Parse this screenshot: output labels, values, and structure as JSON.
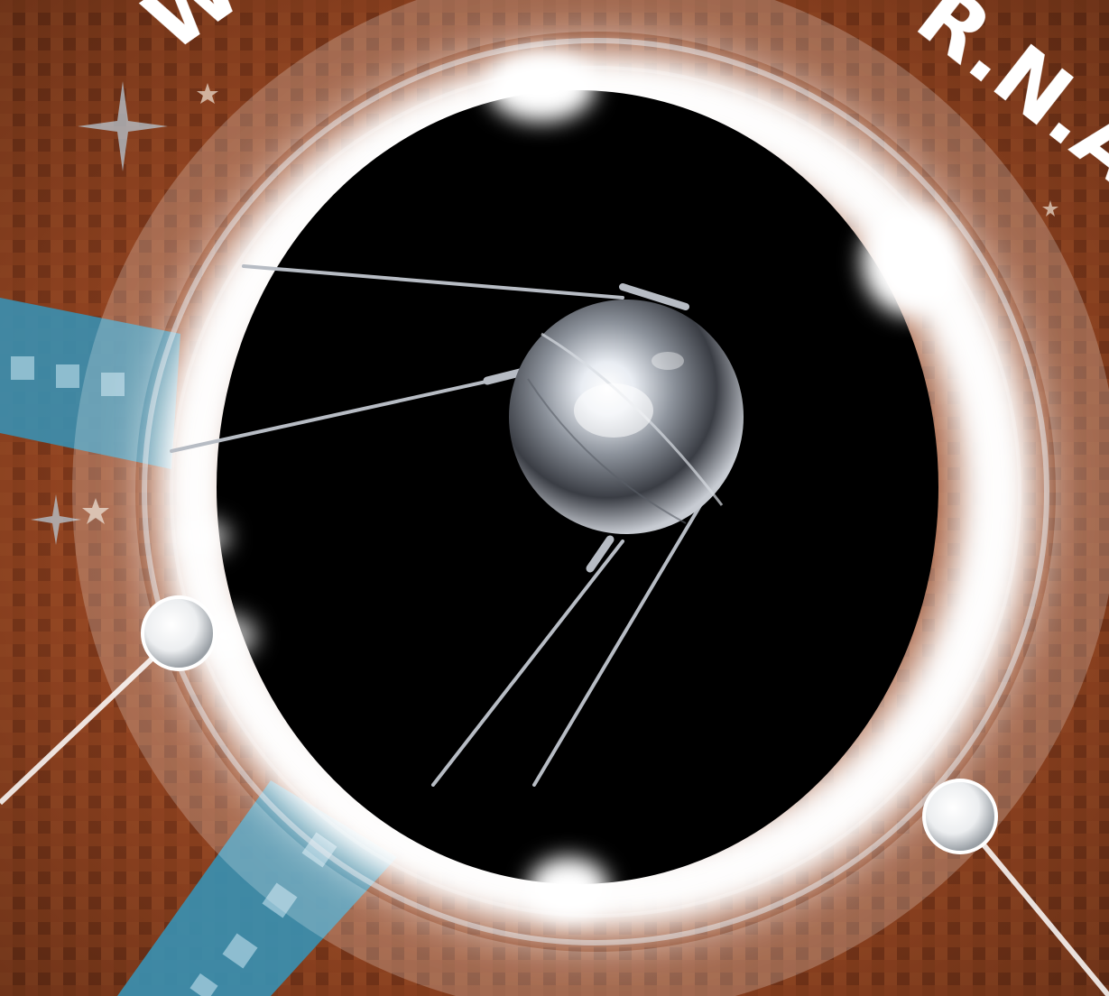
{
  "poster": {
    "arc_text_left": "W",
    "arc_text_right": "R.N.A."
  },
  "colors": {
    "background_rust": "#8a3f1f",
    "background_dark": "#3a1a0c",
    "ring_white": "#ffffff",
    "band_blue": "#3a8fb0",
    "space_black": "#000000",
    "satellite_silver": "#c9ccd3"
  },
  "icons": {
    "satellite": "sputnik-satellite-icon",
    "node_top_left": "node-dot-icon",
    "node_bottom_right": "node-dot-icon"
  }
}
